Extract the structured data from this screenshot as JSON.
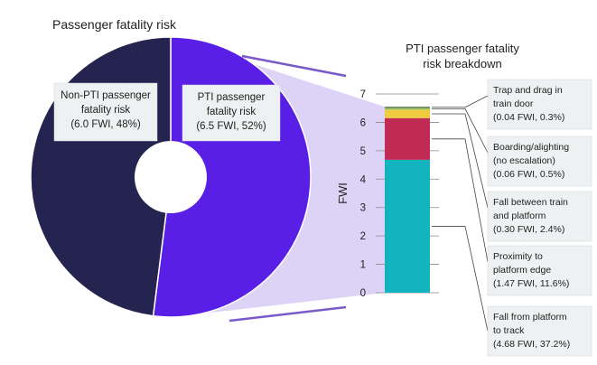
{
  "chart_data": [
    {
      "type": "pie",
      "title": "Passenger fatality risk",
      "slices": [
        {
          "label_lines": [
            "Non-PTI passenger",
            "fatality risk",
            "(6.0 FWI, 48%)"
          ],
          "value": 6.0,
          "percent": 48,
          "color": "#25234f"
        },
        {
          "label_lines": [
            "PTI passenger",
            "fatality risk",
            "(6.5 FWI, 52%)"
          ],
          "value": 6.5,
          "percent": 52,
          "color": "#5a1fe6"
        }
      ]
    },
    {
      "type": "bar",
      "stacked": true,
      "title_lines": [
        "PTI passenger fatality",
        "risk breakdown"
      ],
      "ylabel": "FWI",
      "ylim": [
        0,
        7
      ],
      "yticks": [
        "0",
        "1",
        "2",
        "3",
        "4",
        "5",
        "6",
        "7"
      ],
      "segments": [
        {
          "value": 4.68,
          "color": "#12b4c0",
          "label_lines": [
            "Fall from platform",
            "to track",
            "(4.68 FWI, 37.2%)"
          ]
        },
        {
          "value": 1.47,
          "color": "#bf2b52",
          "label_lines": [
            "Proximity to",
            "platform edge",
            "(1.47 FWI, 11.6%)"
          ]
        },
        {
          "value": 0.3,
          "color": "#efcc3f",
          "label_lines": [
            "Fall between train",
            "and platform",
            "(0.30 FWI, 2.4%)"
          ]
        },
        {
          "value": 0.06,
          "color": "#8dc268",
          "label_lines": [
            "Boarding/alighting",
            "(no escalation)",
            "(0.06 FWI, 0.5%)"
          ]
        },
        {
          "value": 0.04,
          "color": "#5e6e48",
          "label_lines": [
            "Trap and drag in",
            "train door",
            "(0.04 FWI, 0.3%)"
          ]
        }
      ]
    }
  ]
}
